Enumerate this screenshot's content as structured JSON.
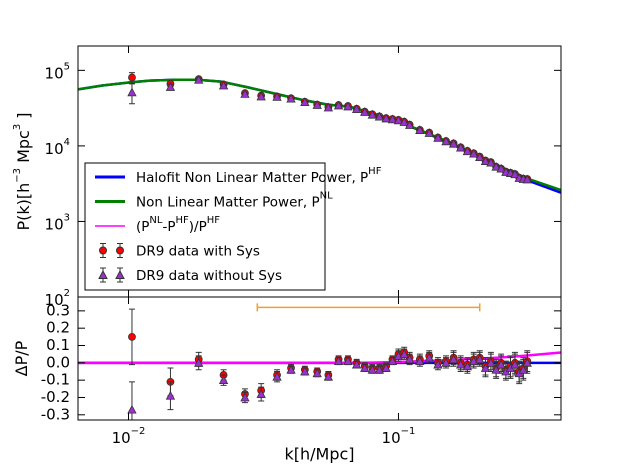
{
  "chart_data": [
    {
      "type": "line",
      "ylabel": [
        "P(k)[h",
        "−3",
        " Mpc",
        "3",
        " ]"
      ],
      "yscale": "log",
      "xlim": [
        0.0065,
        0.4
      ],
      "xscale": "log",
      "xticks": [
        0.01,
        0.1
      ],
      "ylim": [
        100,
        210000
      ],
      "yticks": [
        {
          "value": 100,
          "label": [
            "10",
            "2"
          ]
        },
        {
          "value": 1000,
          "label": [
            "10",
            "3"
          ]
        },
        {
          "value": 10000,
          "label": [
            "10",
            "4"
          ]
        },
        {
          "value": 100000,
          "label": [
            "10",
            "5"
          ]
        }
      ],
      "legend": "lower left",
      "series": [
        {
          "name": [
            "Halofit Non Linear Matter Power, P",
            "HF"
          ],
          "color": "#0000ff",
          "x": [
            0.0065,
            0.008,
            0.01,
            0.012,
            0.015,
            0.018,
            0.022,
            0.028,
            0.035,
            0.045,
            0.055,
            0.066,
            0.08,
            0.1,
            0.12,
            0.154,
            0.2,
            0.235,
            0.3,
            0.4
          ],
          "values": [
            56000,
            63000,
            69000,
            73000,
            75000,
            75000,
            71000,
            59000,
            49000,
            40000,
            35000,
            33000,
            27000,
            21000,
            16000,
            11000,
            7000,
            5200,
            3500,
            2400
          ]
        },
        {
          "name": [
            "Non Linear Matter Power, P",
            "NL"
          ],
          "color": "#008000",
          "x": [
            0.0065,
            0.008,
            0.01,
            0.012,
            0.015,
            0.018,
            0.022,
            0.028,
            0.035,
            0.045,
            0.055,
            0.066,
            0.08,
            0.1,
            0.12,
            0.154,
            0.2,
            0.235,
            0.3,
            0.4
          ],
          "values": [
            56000,
            63000,
            69000,
            73000,
            75000,
            75000,
            71000,
            59000,
            49000,
            40000,
            35000,
            33000,
            27000,
            21100,
            16200,
            11200,
            7200,
            5400,
            3700,
            2600
          ]
        },
        {
          "name": [
            "(P",
            "NL",
            "-P",
            "HF",
            ")/P",
            "HF"
          ],
          "color": "#ff00ff",
          "x": [],
          "values": []
        },
        {
          "name": [
            "DR9 data with Sys"
          ],
          "color": "#ff0000",
          "marker": "circle",
          "x": [
            0.0103,
            0.0143,
            0.0182,
            0.0225,
            0.027,
            0.031,
            0.0355,
            0.04,
            0.045,
            0.05,
            0.055,
            0.06,
            0.065,
            0.07,
            0.075,
            0.08,
            0.085,
            0.09,
            0.095,
            0.1,
            0.105,
            0.11,
            0.12,
            0.13,
            0.14,
            0.15,
            0.16,
            0.17,
            0.18,
            0.19,
            0.2,
            0.21,
            0.22,
            0.23,
            0.24,
            0.25,
            0.26,
            0.27,
            0.28,
            0.29,
            0.3
          ],
          "values": [
            80500,
            66300,
            76500,
            65100,
            50000,
            46200,
            45100,
            42700,
            38400,
            35200,
            32600,
            34700,
            33700,
            31000,
            28400,
            26200,
            24600,
            23300,
            22700,
            22100,
            20900,
            19100,
            16300,
            15000,
            12900,
            11600,
            10800,
            9600,
            8600,
            8000,
            7200,
            6400,
            6100,
            5300,
            5000,
            4560,
            4410,
            4250,
            3800,
            3690,
            3640
          ],
          "errors": [
            12900,
            5300,
            3100,
            2000,
            1500,
            1800,
            1400,
            900,
            800,
            700,
            700,
            700,
            700,
            600,
            600,
            500,
            500,
            500,
            500,
            700,
            600,
            600,
            500,
            500,
            400,
            400,
            400,
            400,
            400,
            300,
            300,
            300,
            300,
            300,
            300,
            200,
            300,
            300,
            200,
            200,
            200
          ]
        },
        {
          "name": [
            "DR9 data without Sys"
          ],
          "color": "#9932cc",
          "marker": "triangle",
          "x": [
            0.0103,
            0.0143,
            0.0182,
            0.0225,
            0.027,
            0.031,
            0.0355,
            0.04,
            0.045,
            0.05,
            0.055,
            0.06,
            0.065,
            0.07,
            0.075,
            0.08,
            0.085,
            0.09,
            0.095,
            0.1,
            0.105,
            0.11,
            0.12,
            0.13,
            0.14,
            0.15,
            0.16,
            0.17,
            0.18,
            0.19,
            0.2,
            0.21,
            0.22,
            0.23,
            0.24,
            0.25,
            0.26,
            0.27,
            0.28,
            0.29,
            0.3
          ],
          "values": [
            51100,
            60300,
            75000,
            63000,
            48800,
            45100,
            44600,
            42200,
            38000,
            34800,
            32200,
            34300,
            33300,
            30700,
            28100,
            25900,
            24400,
            23100,
            22500,
            21800,
            20700,
            18900,
            16200,
            14800,
            12800,
            11500,
            10700,
            9500,
            8500,
            7900,
            7100,
            6300,
            6000,
            5300,
            5000,
            4510,
            4370,
            4210,
            3760,
            3650,
            3600
          ],
          "errors": [
            15000,
            5300,
            3100,
            2000,
            1500,
            1800,
            1400,
            900,
            800,
            700,
            700,
            700,
            700,
            600,
            600,
            500,
            500,
            500,
            500,
            700,
            600,
            600,
            500,
            500,
            400,
            400,
            400,
            400,
            400,
            300,
            300,
            300,
            300,
            300,
            300,
            200,
            300,
            300,
            200,
            200,
            200
          ]
        }
      ]
    },
    {
      "type": "line",
      "ylabel": [
        "ΔP/P"
      ],
      "xlabel": "k[h/Mpc]",
      "xlim": [
        0.0065,
        0.4
      ],
      "xscale": "log",
      "xticks": [
        {
          "value": 0.01,
          "label": [
            "10",
            "−2"
          ]
        },
        {
          "value": 0.1,
          "label": [
            "10",
            "−1"
          ]
        }
      ],
      "ylim": [
        -0.33,
        0.38
      ],
      "yticks": [
        0.3,
        0.2,
        0.1,
        {
          "value": 0,
          "label": "0.0"
        },
        -0.1,
        -0.2,
        -0.3
      ],
      "range": {
        "x": [
          0.03,
          0.2
        ],
        "y": 0.32,
        "color": "#f0a030"
      },
      "series": [
        {
          "color": "#0000ff",
          "x": [
            0.0065,
            0.4
          ],
          "values": [
            0,
            0
          ]
        },
        {
          "color": "#ff00ff",
          "x": [
            0.0065,
            0.066,
            0.08,
            0.1,
            0.12,
            0.154,
            0.2,
            0.235,
            0.3,
            0.4
          ],
          "values": [
            0,
            0,
            0.001,
            0.005,
            0.01,
            0.015,
            0.025,
            0.03,
            0.042,
            0.06
          ]
        },
        {
          "color": "#ff0000",
          "marker": "circle",
          "x": [
            0.0103,
            0.0143,
            0.0182,
            0.0225,
            0.027,
            0.031,
            0.0355,
            0.04,
            0.045,
            0.05,
            0.055,
            0.06,
            0.065,
            0.07,
            0.075,
            0.08,
            0.085,
            0.09,
            0.095,
            0.1,
            0.105,
            0.11,
            0.12,
            0.13,
            0.14,
            0.15,
            0.16,
            0.17,
            0.18,
            0.19,
            0.2,
            0.21,
            0.22,
            0.23,
            0.24,
            0.25,
            0.26,
            0.27,
            0.28,
            0.29,
            0.3
          ],
          "values": [
            0.15,
            -0.11,
            0.02,
            -0.07,
            -0.18,
            -0.16,
            -0.07,
            -0.03,
            -0.04,
            -0.05,
            -0.07,
            0.02,
            0.02,
            0.0,
            -0.02,
            -0.03,
            -0.03,
            -0.02,
            0.02,
            0.05,
            0.06,
            0.03,
            0.02,
            0.04,
            0.0,
            0.01,
            0.03,
            0.0,
            -0.01,
            0.02,
            0.03,
            -0.02,
            0.01,
            -0.03,
            0.0,
            -0.04,
            -0.02,
            0.0,
            -0.05,
            -0.03,
            0.01
          ],
          "errors": [
            0.16,
            0.08,
            0.04,
            0.03,
            0.03,
            0.04,
            0.03,
            0.02,
            0.02,
            0.02,
            0.02,
            0.02,
            0.02,
            0.02,
            0.02,
            0.02,
            0.02,
            0.02,
            0.02,
            0.03,
            0.03,
            0.03,
            0.03,
            0.03,
            0.03,
            0.03,
            0.04,
            0.04,
            0.04,
            0.04,
            0.04,
            0.05,
            0.05,
            0.05,
            0.05,
            0.05,
            0.06,
            0.06,
            0.06,
            0.06,
            0.06
          ]
        },
        {
          "color": "#9932cc",
          "marker": "triangle",
          "x": [
            0.0103,
            0.0143,
            0.0182,
            0.0225,
            0.027,
            0.031,
            0.0355,
            0.04,
            0.045,
            0.05,
            0.055,
            0.06,
            0.065,
            0.07,
            0.075,
            0.08,
            0.085,
            0.09,
            0.095,
            0.1,
            0.105,
            0.11,
            0.12,
            0.13,
            0.14,
            0.15,
            0.16,
            0.17,
            0.18,
            0.19,
            0.2,
            0.21,
            0.22,
            0.23,
            0.24,
            0.25,
            0.26,
            0.27,
            0.28,
            0.29,
            0.3
          ],
          "values": [
            -0.27,
            -0.19,
            0.0,
            -0.1,
            -0.2,
            -0.18,
            -0.08,
            -0.04,
            -0.05,
            -0.06,
            -0.08,
            0.01,
            0.01,
            -0.01,
            -0.03,
            -0.04,
            -0.04,
            -0.03,
            0.01,
            0.04,
            0.05,
            0.02,
            0.01,
            0.03,
            -0.01,
            0.0,
            0.02,
            -0.01,
            -0.02,
            0.01,
            0.02,
            -0.03,
            0.0,
            -0.04,
            -0.01,
            -0.05,
            -0.03,
            -0.01,
            -0.06,
            -0.04,
            0.0
          ],
          "errors": [
            0.16,
            0.08,
            0.04,
            0.03,
            0.03,
            0.04,
            0.03,
            0.02,
            0.02,
            0.02,
            0.02,
            0.02,
            0.02,
            0.02,
            0.02,
            0.02,
            0.02,
            0.02,
            0.02,
            0.03,
            0.03,
            0.03,
            0.03,
            0.03,
            0.03,
            0.03,
            0.04,
            0.04,
            0.04,
            0.04,
            0.04,
            0.05,
            0.05,
            0.05,
            0.05,
            0.05,
            0.06,
            0.06,
            0.06,
            0.06,
            0.06
          ]
        }
      ]
    }
  ]
}
